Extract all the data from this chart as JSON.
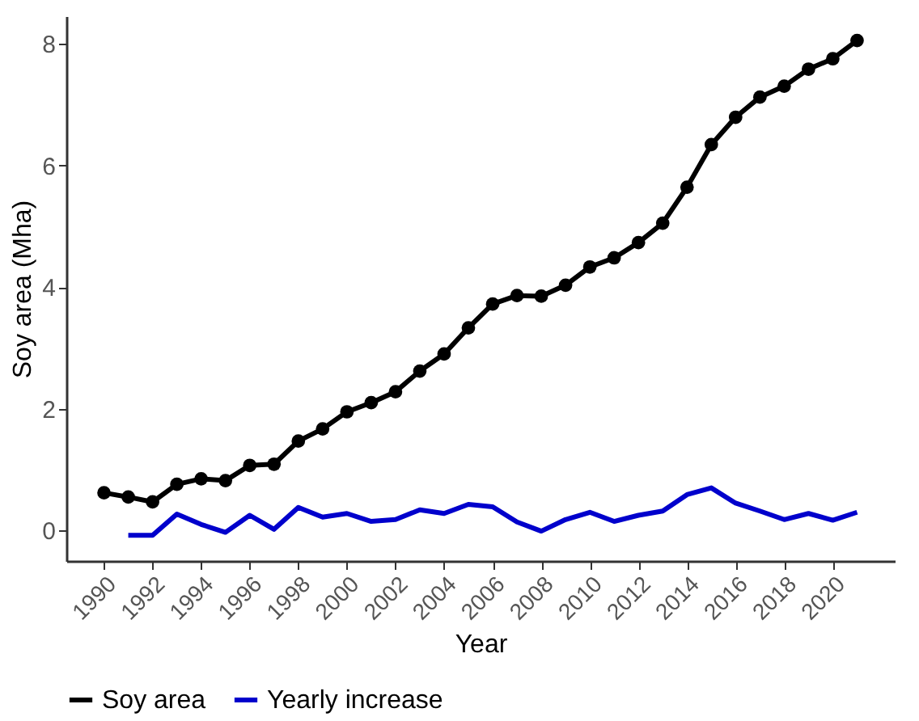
{
  "chart_data": {
    "type": "line",
    "xlabel": "Year",
    "ylabel": "Soy area (Mha)",
    "legend": "bottom",
    "grid": false,
    "line_style": "solid",
    "xlim": [
      1988.45,
      2022.55
    ],
    "xticks": [
      1990,
      1992,
      1994,
      1996,
      1998,
      2000,
      2002,
      2004,
      2006,
      2008,
      2010,
      2012,
      2014,
      2016,
      2018,
      2020
    ],
    "ylim": [
      -0.5,
      8.45
    ],
    "yticks": [
      0,
      2,
      4,
      6,
      8
    ],
    "series": [
      {
        "name": "Soy area",
        "color": "#000000",
        "marker": "circle",
        "x": [
          1990,
          1991,
          1992,
          1993,
          1994,
          1995,
          1996,
          1997,
          1998,
          1999,
          2000,
          2001,
          2002,
          2003,
          2004,
          2005,
          2006,
          2007,
          2008,
          2009,
          2010,
          2011,
          2012,
          2013,
          2014,
          2015,
          2016,
          2017,
          2018,
          2019,
          2020,
          2021
        ],
        "values": [
          0.62,
          0.55,
          0.47,
          0.76,
          0.85,
          0.82,
          1.07,
          1.09,
          1.47,
          1.67,
          1.95,
          2.1,
          2.28,
          2.62,
          2.9,
          3.33,
          3.72,
          3.86,
          3.85,
          4.03,
          4.33,
          4.48,
          4.73,
          5.05,
          5.64,
          6.34,
          6.79,
          7.12,
          7.3,
          7.58,
          7.75,
          8.05
        ]
      },
      {
        "name": "Yearly increase",
        "color": "#0000cc",
        "marker": "none",
        "x": [
          1991,
          1992,
          1993,
          1994,
          1995,
          1996,
          1997,
          1998,
          1999,
          2000,
          2001,
          2002,
          2003,
          2004,
          2005,
          2006,
          2007,
          2008,
          2009,
          2010,
          2011,
          2012,
          2013,
          2014,
          2015,
          2016,
          2017,
          2018,
          2019,
          2020,
          2021
        ],
        "values": [
          -0.08,
          -0.08,
          0.27,
          0.1,
          -0.03,
          0.25,
          0.02,
          0.38,
          0.22,
          0.28,
          0.15,
          0.18,
          0.34,
          0.28,
          0.43,
          0.39,
          0.14,
          -0.01,
          0.18,
          0.3,
          0.15,
          0.25,
          0.32,
          0.59,
          0.7,
          0.45,
          0.32,
          0.18,
          0.28,
          0.17,
          0.3
        ]
      }
    ]
  }
}
